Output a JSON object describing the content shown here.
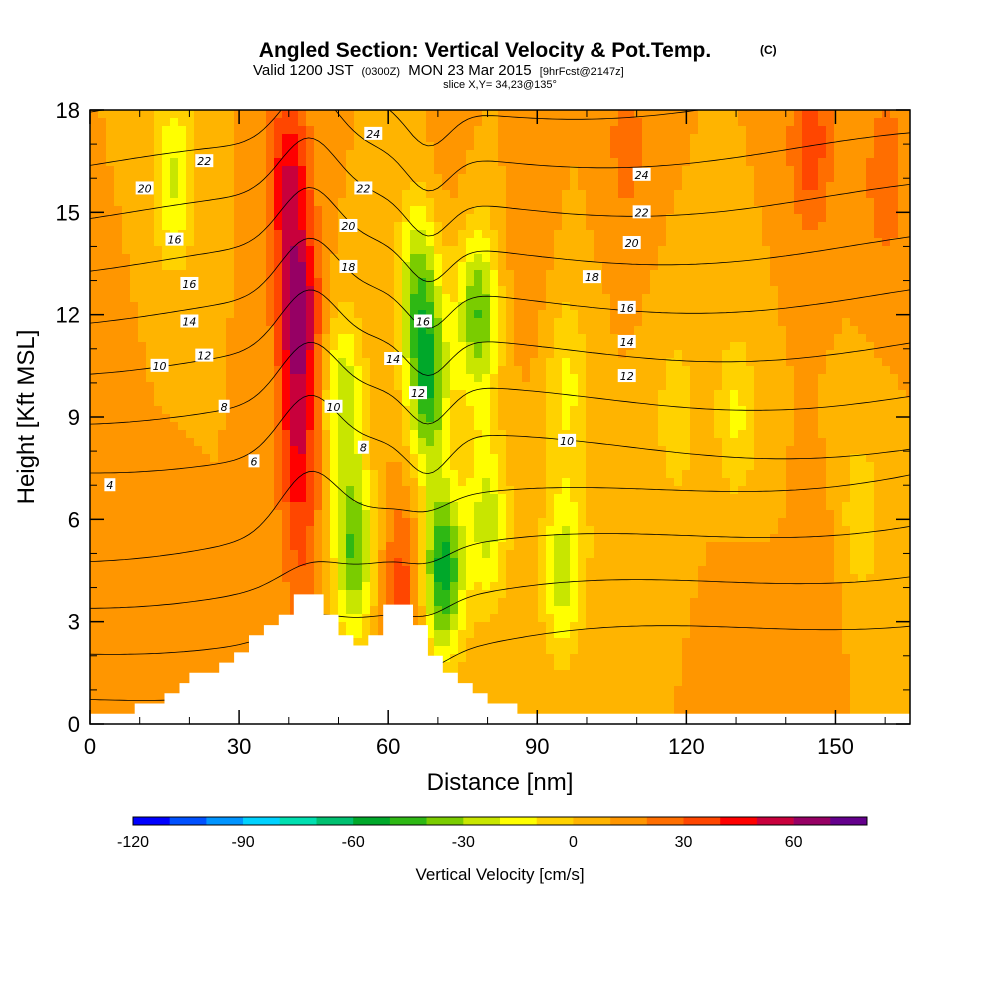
{
  "header": {
    "title": "Angled Section: Vertical Velocity & Pot.Temp.",
    "title_suffix": "(C)",
    "valid_prefix": "Valid 1200 JST",
    "valid_zulu": "(0300Z)",
    "valid_date": "MON 23 Mar 2015",
    "valid_forecast": "[9hrFcst@2147z]",
    "slice": "slice X,Y= 34,23@135°"
  },
  "chart_data": {
    "type": "heatmap",
    "xlabel": "Distance [nm]",
    "ylabel": "Height [Kft MSL]",
    "xlim": [
      0,
      165
    ],
    "ylim": [
      0,
      18
    ],
    "xticks": [
      0,
      30,
      60,
      90,
      120,
      150
    ],
    "yticks": [
      0,
      3,
      6,
      9,
      12,
      15,
      18
    ],
    "colorbar": {
      "title": "Vertical Velocity [cm/s]",
      "range": [
        -120,
        80
      ],
      "step": 10,
      "ticks": [
        -120,
        -90,
        -60,
        -30,
        0,
        30,
        60
      ],
      "colors": [
        "#0000ff",
        "#0050ff",
        "#0094ff",
        "#00d2ff",
        "#00dfb0",
        "#00c070",
        "#00a82a",
        "#2eb814",
        "#7acc00",
        "#c8e600",
        "#ffff00",
        "#ffd200",
        "#ffb400",
        "#ff9600",
        "#ff6e00",
        "#ff4600",
        "#ff0000",
        "#c8003c",
        "#960064",
        "#64008c"
      ]
    },
    "velocity_field": {
      "background_cm_s": 10,
      "features": [
        {
          "x": 42,
          "z": 12,
          "value": 65
        },
        {
          "x": 42,
          "z": 8,
          "value": 45
        },
        {
          "x": 40,
          "z": 16,
          "value": 50
        },
        {
          "x": 43,
          "z": 4,
          "value": 25
        },
        {
          "x": 53,
          "z": 5,
          "value": -40
        },
        {
          "x": 51,
          "z": 9.5,
          "value": -28
        },
        {
          "x": 63,
          "z": 4,
          "value": 35
        },
        {
          "x": 68,
          "z": 10,
          "value": -45
        },
        {
          "x": 66,
          "z": 13,
          "value": -30
        },
        {
          "x": 71,
          "z": 4.5,
          "value": -55
        },
        {
          "x": 78,
          "z": 12,
          "value": -40
        },
        {
          "x": 80,
          "z": 6,
          "value": -25
        },
        {
          "x": 17,
          "z": 16,
          "value": -22
        },
        {
          "x": 95,
          "z": 4.5,
          "value": -25
        },
        {
          "x": 96,
          "z": 10,
          "value": -12
        },
        {
          "x": 130,
          "z": 9,
          "value": -12
        },
        {
          "x": 118,
          "z": 9,
          "value": -8
        },
        {
          "x": 155,
          "z": 6,
          "value": -8
        },
        {
          "x": 108,
          "z": 17,
          "value": 25
        },
        {
          "x": 145,
          "z": 17,
          "value": 38
        },
        {
          "x": 160,
          "z": 16,
          "value": 28
        },
        {
          "x": 72,
          "z": 17,
          "value": 15
        },
        {
          "x": 12,
          "z": 3,
          "value": 20
        },
        {
          "x": 130,
          "z": 3,
          "value": 18
        },
        {
          "x": 148,
          "z": 4,
          "value": 15
        },
        {
          "x": 100,
          "z": 6,
          "value": 5
        },
        {
          "x": 88,
          "z": 14,
          "value": 18
        },
        {
          "x": 2,
          "z": 9,
          "value": 20
        }
      ]
    },
    "contours": {
      "variable": "Potential temperature (C)",
      "levels": [
        2,
        4,
        6,
        8,
        10,
        12,
        14,
        16,
        18,
        20,
        22,
        24
      ],
      "labels": [
        {
          "text": "4",
          "x": 4,
          "z": 7.0
        },
        {
          "text": "6",
          "x": 33,
          "z": 7.7
        },
        {
          "text": "8",
          "x": 27,
          "z": 9.3
        },
        {
          "text": "10",
          "x": 14,
          "z": 10.5
        },
        {
          "text": "12",
          "x": 23,
          "z": 10.8
        },
        {
          "text": "14",
          "x": 20,
          "z": 11.8
        },
        {
          "text": "16",
          "x": 20,
          "z": 12.9
        },
        {
          "text": "16",
          "x": 17,
          "z": 14.2
        },
        {
          "text": "20",
          "x": 11,
          "z": 15.7
        },
        {
          "text": "22",
          "x": 23,
          "z": 16.5
        },
        {
          "text": "24",
          "x": 57,
          "z": 17.3
        },
        {
          "text": "22",
          "x": 55,
          "z": 15.7
        },
        {
          "text": "20",
          "x": 52,
          "z": 14.6
        },
        {
          "text": "18",
          "x": 52,
          "z": 13.4
        },
        {
          "text": "16",
          "x": 67,
          "z": 11.8
        },
        {
          "text": "14",
          "x": 61,
          "z": 10.7
        },
        {
          "text": "12",
          "x": 66,
          "z": 9.7
        },
        {
          "text": "10",
          "x": 49,
          "z": 9.3
        },
        {
          "text": "8",
          "x": 55,
          "z": 8.1
        },
        {
          "text": "24",
          "x": 111,
          "z": 16.1
        },
        {
          "text": "22",
          "x": 111,
          "z": 15.0
        },
        {
          "text": "20",
          "x": 109,
          "z": 14.1
        },
        {
          "text": "18",
          "x": 101,
          "z": 13.1
        },
        {
          "text": "16",
          "x": 108,
          "z": 12.2
        },
        {
          "text": "14",
          "x": 108,
          "z": 11.2
        },
        {
          "text": "12",
          "x": 108,
          "z": 10.2
        },
        {
          "text": "10",
          "x": 96,
          "z": 8.3
        }
      ]
    },
    "terrain": [
      [
        0,
        0.3
      ],
      [
        9,
        0.3
      ],
      [
        9,
        0.6
      ],
      [
        15,
        0.6
      ],
      [
        15,
        0.9
      ],
      [
        18,
        0.9
      ],
      [
        18,
        1.2
      ],
      [
        20,
        1.2
      ],
      [
        20,
        1.5
      ],
      [
        26,
        1.5
      ],
      [
        26,
        1.8
      ],
      [
        29,
        1.8
      ],
      [
        29,
        2.1
      ],
      [
        32,
        2.1
      ],
      [
        32,
        2.6
      ],
      [
        35,
        2.6
      ],
      [
        35,
        2.9
      ],
      [
        38,
        2.9
      ],
      [
        38,
        3.2
      ],
      [
        41,
        3.2
      ],
      [
        41,
        3.8
      ],
      [
        47,
        3.8
      ],
      [
        47,
        3.2
      ],
      [
        50,
        3.2
      ],
      [
        50,
        2.6
      ],
      [
        53,
        2.6
      ],
      [
        53,
        2.3
      ],
      [
        56,
        2.3
      ],
      [
        56,
        2.6
      ],
      [
        59,
        2.6
      ],
      [
        59,
        3.5
      ],
      [
        65,
        3.5
      ],
      [
        65,
        2.9
      ],
      [
        68,
        2.9
      ],
      [
        68,
        2.0
      ],
      [
        71,
        2.0
      ],
      [
        71,
        1.5
      ],
      [
        74,
        1.5
      ],
      [
        74,
        1.2
      ],
      [
        77,
        1.2
      ],
      [
        77,
        0.9
      ],
      [
        80,
        0.9
      ],
      [
        80,
        0.6
      ],
      [
        86,
        0.6
      ],
      [
        86,
        0.3
      ],
      [
        165,
        0.3
      ]
    ]
  }
}
